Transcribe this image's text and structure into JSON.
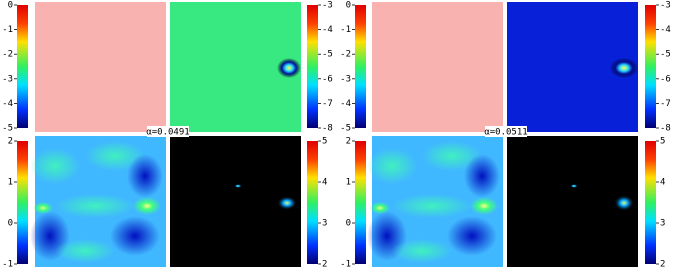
{
  "groups": [
    {
      "label": "α=0.0491",
      "colorbars": [
        {
          "ticks": [
            0,
            -1,
            -2,
            -3,
            -4,
            -5
          ]
        },
        {
          "ticks": [
            -3,
            -4,
            -5,
            -6,
            -7,
            -8
          ]
        },
        {
          "ticks": [
            2,
            1,
            0,
            -1
          ]
        },
        {
          "ticks": [
            5,
            4,
            3,
            2
          ]
        }
      ]
    },
    {
      "label": "α=0.0511",
      "colorbars": [
        {
          "ticks": [
            0,
            -1,
            -2,
            -3,
            -4,
            -5
          ]
        },
        {
          "ticks": [
            -3,
            -4,
            -5,
            -6,
            -7,
            -8
          ]
        },
        {
          "ticks": [
            2,
            1,
            0,
            -1
          ]
        },
        {
          "ticks": [
            5,
            4,
            3,
            2
          ]
        }
      ]
    }
  ]
}
